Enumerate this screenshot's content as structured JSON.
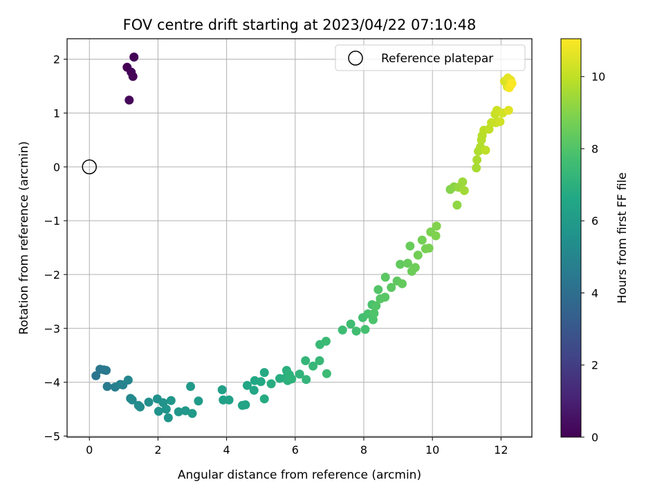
{
  "chart_data": {
    "type": "scatter",
    "title": "FOV centre drift starting at 2023/04/22 07:10:48",
    "xlabel": "Angular distance from reference (arcmin)",
    "ylabel": "Rotation from reference (arcmin)",
    "xlim": [
      -0.65,
      12.9
    ],
    "ylim": [
      -5.02,
      2.38
    ],
    "xticks": [
      0,
      2,
      4,
      6,
      8,
      10,
      12
    ],
    "yticks": [
      -5,
      -4,
      -3,
      -2,
      -1,
      0,
      1,
      2
    ],
    "xtick_labels": [
      "0",
      "2",
      "4",
      "6",
      "8",
      "10",
      "12"
    ],
    "ytick_labels": [
      "−5",
      "−4",
      "−3",
      "−2",
      "−1",
      "0",
      "1",
      "2"
    ],
    "grid": true,
    "legend": {
      "placement": "top-right",
      "entries": [
        "Reference platepar"
      ]
    },
    "reference_point": {
      "x": 0,
      "y": 0,
      "label": "Reference platepar"
    },
    "colorbar": {
      "label": "Hours from first FF file",
      "range": [
        0,
        11.05
      ],
      "ticks": [
        0,
        2,
        4,
        6,
        8,
        10
      ],
      "tick_labels": [
        "0",
        "2",
        "4",
        "6",
        "8",
        "10"
      ],
      "colormap": "viridis"
    },
    "points": [
      [
        1.1,
        1.85,
        0.0
      ],
      [
        1.3,
        2.04,
        0.05
      ],
      [
        1.22,
        1.76,
        0.1
      ],
      [
        1.27,
        1.68,
        0.15
      ],
      [
        1.16,
        1.24,
        0.2
      ],
      [
        0.19,
        -3.88,
        4.3
      ],
      [
        0.31,
        -3.76,
        4.35
      ],
      [
        0.42,
        -3.77,
        4.4
      ],
      [
        0.49,
        -3.78,
        4.45
      ],
      [
        0.52,
        -4.08,
        4.6
      ],
      [
        0.75,
        -4.09,
        4.7
      ],
      [
        0.9,
        -4.04,
        4.8
      ],
      [
        0.98,
        -4.05,
        4.9
      ],
      [
        1.13,
        -3.96,
        5.0
      ],
      [
        1.2,
        -4.3,
        5.1
      ],
      [
        1.25,
        -4.33,
        5.2
      ],
      [
        1.43,
        -4.43,
        5.3
      ],
      [
        1.48,
        -4.46,
        5.35
      ],
      [
        1.73,
        -4.37,
        5.4
      ],
      [
        1.98,
        -4.31,
        5.5
      ],
      [
        2.02,
        -4.54,
        5.55
      ],
      [
        2.15,
        -4.38,
        5.6
      ],
      [
        2.24,
        -4.5,
        5.65
      ],
      [
        2.3,
        -4.66,
        5.7
      ],
      [
        2.38,
        -4.34,
        5.75
      ],
      [
        2.6,
        -4.55,
        5.8
      ],
      [
        2.8,
        -4.53,
        5.85
      ],
      [
        2.95,
        -4.08,
        5.9
      ],
      [
        3.0,
        -4.58,
        5.95
      ],
      [
        3.18,
        -4.35,
        6.0
      ],
      [
        3.87,
        -4.14,
        6.2
      ],
      [
        3.9,
        -4.33,
        6.25
      ],
      [
        4.07,
        -4.33,
        6.3
      ],
      [
        4.46,
        -4.43,
        6.4
      ],
      [
        4.55,
        -4.42,
        6.45
      ],
      [
        4.6,
        -4.06,
        6.5
      ],
      [
        4.8,
        -4.15,
        6.55
      ],
      [
        4.82,
        -3.97,
        6.6
      ],
      [
        5.0,
        -3.99,
        6.65
      ],
      [
        5.1,
        -3.82,
        6.7
      ],
      [
        5.1,
        -4.31,
        6.75
      ],
      [
        5.3,
        -4.03,
        6.8
      ],
      [
        5.55,
        -3.93,
        6.85
      ],
      [
        5.72,
        -3.92,
        6.9
      ],
      [
        5.75,
        -3.78,
        6.95
      ],
      [
        5.78,
        -3.97,
        7.0
      ],
      [
        5.83,
        -3.86,
        7.05
      ],
      [
        5.9,
        -3.94,
        7.1
      ],
      [
        6.13,
        -3.85,
        7.15
      ],
      [
        6.32,
        -3.95,
        7.2
      ],
      [
        6.3,
        -3.6,
        7.25
      ],
      [
        6.52,
        -3.7,
        7.3
      ],
      [
        6.71,
        -3.6,
        7.35
      ],
      [
        6.72,
        -3.3,
        7.4
      ],
      [
        6.9,
        -3.24,
        7.45
      ],
      [
        6.92,
        -3.84,
        7.5
      ],
      [
        7.38,
        -3.03,
        7.55
      ],
      [
        7.62,
        -2.92,
        7.6
      ],
      [
        7.78,
        -3.05,
        7.65
      ],
      [
        7.97,
        -2.8,
        7.7
      ],
      [
        8.04,
        -3.02,
        7.75
      ],
      [
        8.12,
        -2.73,
        7.8
      ],
      [
        8.24,
        -2.56,
        7.85
      ],
      [
        8.27,
        -2.84,
        7.9
      ],
      [
        8.3,
        -2.72,
        7.95
      ],
      [
        8.36,
        -2.58,
        8.0
      ],
      [
        8.42,
        -2.28,
        8.05
      ],
      [
        8.48,
        -2.45,
        8.1
      ],
      [
        8.62,
        -2.42,
        8.15
      ],
      [
        8.63,
        -2.05,
        8.2
      ],
      [
        8.8,
        -2.24,
        8.25
      ],
      [
        8.97,
        -2.12,
        8.3
      ],
      [
        9.06,
        -1.81,
        8.35
      ],
      [
        9.12,
        -2.17,
        8.4
      ],
      [
        9.28,
        -1.79,
        8.45
      ],
      [
        9.35,
        -1.47,
        8.5
      ],
      [
        9.4,
        -1.94,
        8.55
      ],
      [
        9.5,
        -1.87,
        8.6
      ],
      [
        9.58,
        -1.64,
        8.65
      ],
      [
        9.7,
        -1.36,
        8.7
      ],
      [
        9.8,
        -1.52,
        8.75
      ],
      [
        9.9,
        -1.51,
        8.8
      ],
      [
        9.95,
        -1.21,
        8.85
      ],
      [
        10.1,
        -1.28,
        8.9
      ],
      [
        10.12,
        -1.1,
        8.95
      ],
      [
        10.52,
        -0.42,
        9.0
      ],
      [
        10.63,
        -0.37,
        9.1
      ],
      [
        10.72,
        -0.71,
        9.2
      ],
      [
        10.76,
        -0.38,
        9.3
      ],
      [
        10.88,
        -0.28,
        9.4
      ],
      [
        10.93,
        -0.44,
        9.5
      ],
      [
        11.28,
        -0.02,
        9.6
      ],
      [
        11.3,
        0.13,
        9.65
      ],
      [
        11.34,
        0.29,
        9.7
      ],
      [
        11.4,
        0.37,
        9.75
      ],
      [
        11.43,
        0.5,
        9.8
      ],
      [
        11.45,
        0.58,
        9.85
      ],
      [
        11.5,
        0.68,
        9.9
      ],
      [
        11.55,
        0.31,
        9.95
      ],
      [
        11.65,
        0.7,
        10.0
      ],
      [
        11.72,
        0.82,
        10.05
      ],
      [
        11.83,
        0.98,
        10.1
      ],
      [
        11.85,
        0.82,
        10.15
      ],
      [
        11.88,
        1.05,
        10.2
      ],
      [
        11.97,
        0.84,
        10.25
      ],
      [
        12.05,
        1.0,
        10.3
      ],
      [
        12.1,
        1.59,
        10.4
      ],
      [
        12.18,
        1.49,
        10.5
      ],
      [
        12.22,
        1.05,
        10.55
      ],
      [
        12.2,
        1.65,
        10.6
      ],
      [
        12.28,
        1.61,
        10.7
      ],
      [
        12.3,
        1.53,
        10.8
      ],
      [
        12.24,
        1.47,
        10.9
      ],
      [
        12.32,
        1.55,
        11.0
      ]
    ]
  }
}
